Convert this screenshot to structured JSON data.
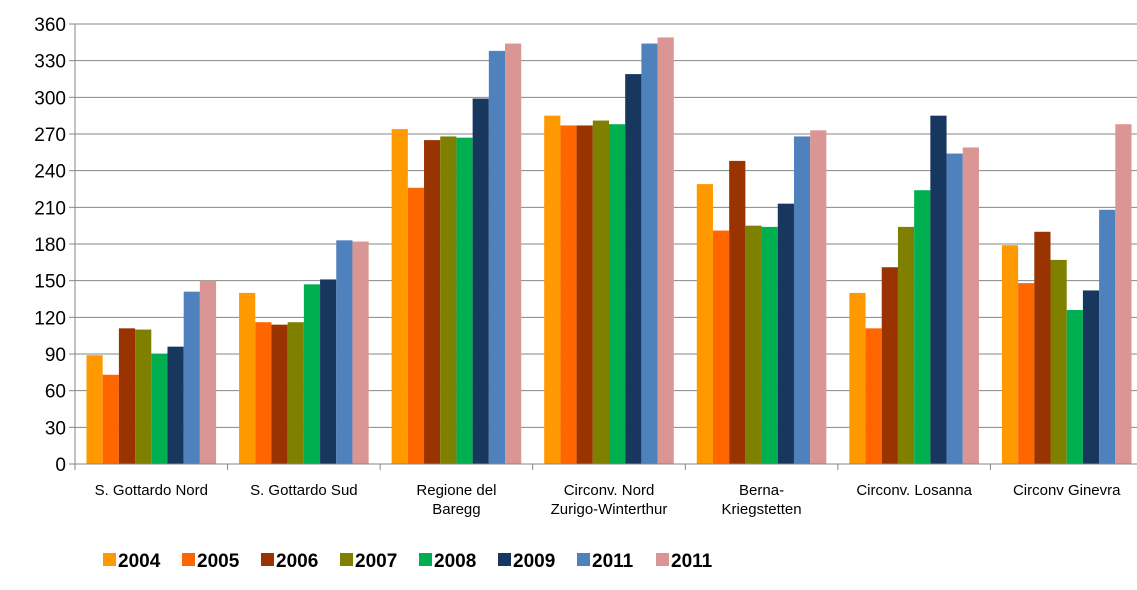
{
  "chart_data": {
    "type": "bar",
    "title": "",
    "xlabel": "",
    "ylabel": "",
    "ylim": [
      0,
      360
    ],
    "yticks": [
      "0",
      "30",
      "60",
      "90",
      "120",
      "150",
      "180",
      "210",
      "240",
      "270",
      "300",
      "330",
      "360"
    ],
    "grid": true,
    "legend_position": "bottom-left",
    "categories": [
      [
        "S. Gottardo Nord"
      ],
      [
        "S. Gottardo Sud"
      ],
      [
        "Regione del",
        "Baregg"
      ],
      [
        "Circonv. Nord",
        "Zurigo-Winterthur"
      ],
      [
        "Berna-",
        "Kriegstetten"
      ],
      [
        "Circonv. Losanna"
      ],
      [
        "Circonv Ginevra"
      ]
    ],
    "series": [
      {
        "name": "2004",
        "color": "#FF9900",
        "values": [
          89,
          140,
          274,
          285,
          229,
          140,
          179
        ]
      },
      {
        "name": "2005",
        "color": "#FF6600",
        "values": [
          73,
          116,
          226,
          277,
          191,
          111,
          148
        ]
      },
      {
        "name": "2006",
        "color": "#993300",
        "values": [
          111,
          114,
          265,
          277,
          248,
          161,
          190
        ]
      },
      {
        "name": "2007",
        "color": "#808000",
        "values": [
          110,
          116,
          268,
          281,
          195,
          194,
          167
        ]
      },
      {
        "name": "2008",
        "color": "#00B050",
        "values": [
          90,
          147,
          267,
          278,
          194,
          224,
          126
        ]
      },
      {
        "name": "2009",
        "color": "#17375E",
        "values": [
          96,
          151,
          299,
          319,
          213,
          285,
          142
        ]
      },
      {
        "name": "2011",
        "color": "#4F81BD",
        "values": [
          141,
          183,
          338,
          344,
          268,
          254,
          208
        ]
      },
      {
        "name": "2011",
        "color": "#D99694",
        "values": [
          150,
          182,
          344,
          349,
          273,
          259,
          278
        ]
      }
    ]
  }
}
